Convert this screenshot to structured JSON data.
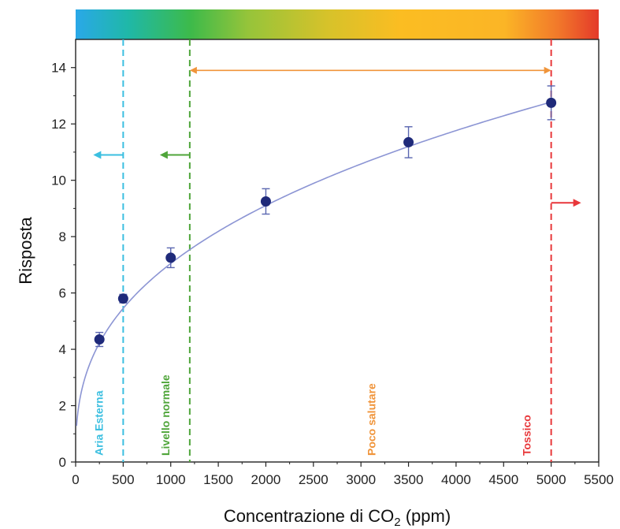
{
  "chart_data": {
    "type": "scatter",
    "xlabel_main": "Concentrazione di CO",
    "xlabel_sub": "2",
    "xlabel_unit": " (ppm)",
    "ylabel": "Risposta",
    "xlim": [
      0,
      5500
    ],
    "ylim": [
      0,
      15
    ],
    "x_ticks": [
      0,
      500,
      1000,
      1500,
      2000,
      2500,
      3000,
      3500,
      4000,
      4500,
      5000,
      5500
    ],
    "y_ticks": [
      0,
      2,
      4,
      6,
      8,
      10,
      12,
      14
    ],
    "grid": false,
    "series": [
      {
        "marker_color": "#1f2a7a",
        "points": [
          {
            "x": 250,
            "y": 4.35,
            "err": 0.25
          },
          {
            "x": 500,
            "y": 5.8,
            "err": 0.15
          },
          {
            "x": 1000,
            "y": 7.25,
            "err": 0.35
          },
          {
            "x": 2000,
            "y": 9.25,
            "err": 0.45
          },
          {
            "x": 3500,
            "y": 11.35,
            "err": 0.55
          },
          {
            "x": 5000,
            "y": 12.75,
            "err": 0.6
          }
        ]
      }
    ],
    "fit_curve": {
      "color": "#8c95d4",
      "model": "y = a*x^b",
      "a": 0.5477,
      "b": 0.3698
    },
    "thresholds": [
      {
        "x": 500,
        "label": "Aria Esterna",
        "color": "#3bbfe0",
        "arrow": "left",
        "arrow_y": 10.9
      },
      {
        "x": 1200,
        "label": "Livello normale",
        "color": "#4fa53a",
        "arrow": "left",
        "arrow_y": 10.9
      },
      {
        "x": 5000,
        "label": "Tossico",
        "color": "#e8373a",
        "arrow": "right",
        "arrow_y": 9.2
      }
    ],
    "range_annotation": {
      "x_from": 1200,
      "x_to": 5000,
      "y": 13.9,
      "label": "Poco salutare",
      "color": "#f0943a"
    },
    "colorbar": {
      "stops": [
        {
          "offset": 0.0,
          "color": "#2aa8e8"
        },
        {
          "offset": 0.1,
          "color": "#1fb8a8"
        },
        {
          "offset": 0.22,
          "color": "#3dba4a"
        },
        {
          "offset": 0.33,
          "color": "#96c43a"
        },
        {
          "offset": 0.48,
          "color": "#d6c22a"
        },
        {
          "offset": 0.62,
          "color": "#fbbd22"
        },
        {
          "offset": 0.82,
          "color": "#fbb526"
        },
        {
          "offset": 0.92,
          "color": "#f27a2a"
        },
        {
          "offset": 1.0,
          "color": "#e43a2a"
        }
      ]
    }
  }
}
